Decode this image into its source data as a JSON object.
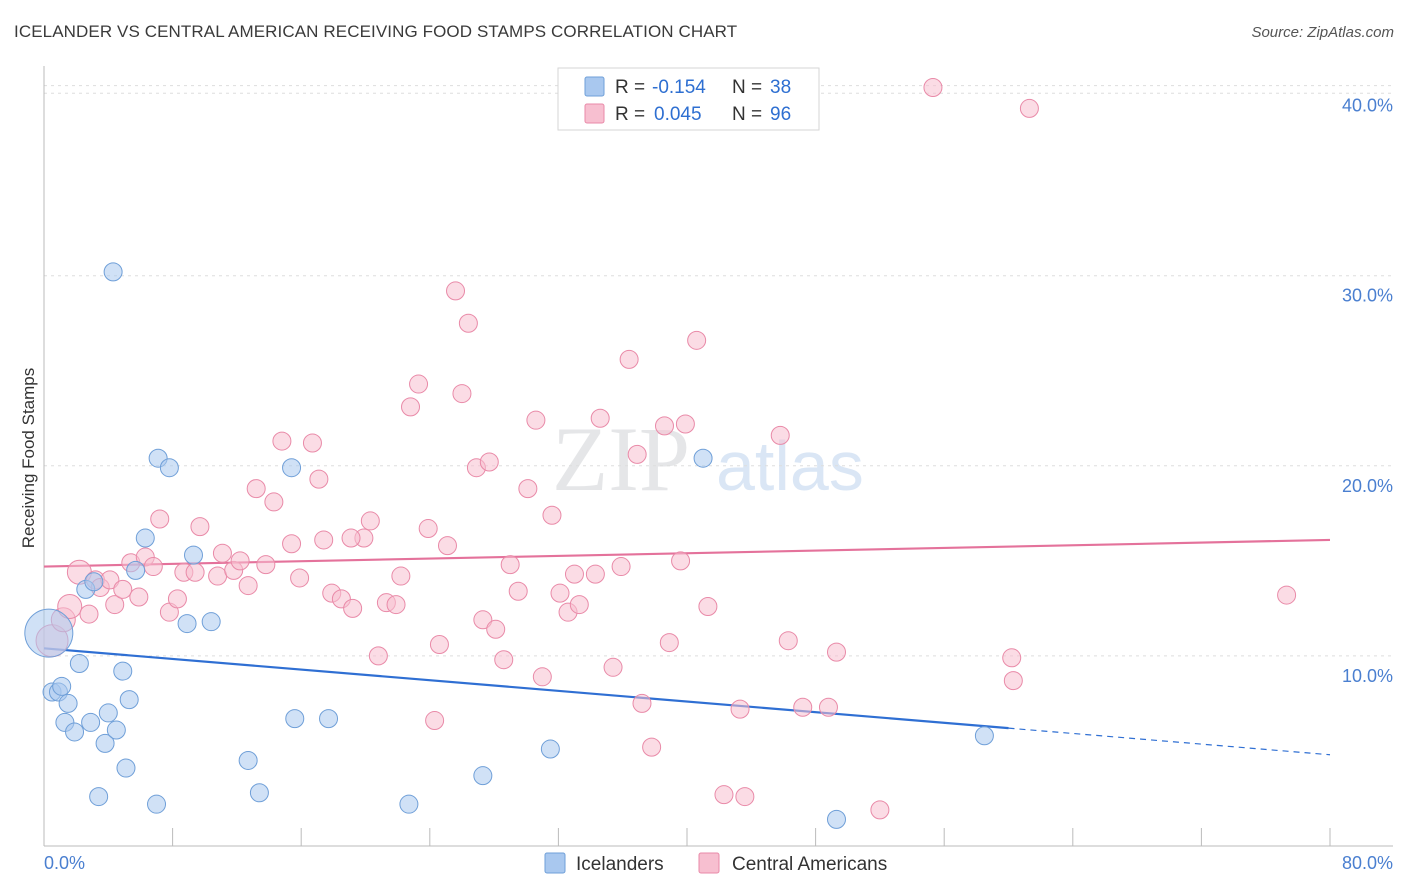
{
  "header": {
    "title": "ICELANDER VS CENTRAL AMERICAN RECEIVING FOOD STAMPS CORRELATION CHART",
    "source": "Source: ZipAtlas.com"
  },
  "watermark": {
    "zip": "ZIP",
    "atlas": "atlas"
  },
  "legend": {
    "r_label": "R =",
    "n_label": "N =",
    "rows": [
      {
        "r": "-0.154",
        "n": "38",
        "color": "#a9c8ef",
        "stroke": "#6f9fd8"
      },
      {
        "r": "0.045",
        "n": "96",
        "color": "#f7bfd0",
        "stroke": "#e98aa8"
      }
    ]
  },
  "bottom_legend": [
    {
      "label": "Icelanders",
      "color": "#a9c8ef",
      "stroke": "#6f9fd8"
    },
    {
      "label": "Central Americans",
      "color": "#f7bfd0",
      "stroke": "#e98aa8"
    }
  ],
  "chart_data": {
    "type": "scatter",
    "title": "ICELANDER VS CENTRAL AMERICAN RECEIVING FOOD STAMPS CORRELATION CHART",
    "xlabel": "",
    "ylabel": "Receiving Food Stamps",
    "xlim": [
      0,
      80
    ],
    "ylim": [
      0,
      40
    ],
    "x_tick_labels": [
      "0.0%",
      "80.0%"
    ],
    "y_ticks": [
      10,
      20,
      30,
      40
    ],
    "y_tick_labels": [
      "10.0%",
      "20.0%",
      "30.0%",
      "40.0%"
    ],
    "grid": true,
    "legend_position": "top-center",
    "series": [
      {
        "name": "Icelanders",
        "color": "#a9c8ef",
        "stroke": "#6f9fd8",
        "line_color": "#2f6fd3",
        "trend": {
          "x0": 0,
          "y0": 10.4,
          "x1": 60,
          "y1": 6.2,
          "dash_x1": 80,
          "dash_y1": 4.8
        },
        "points": [
          [
            0.3,
            11.2,
            24
          ],
          [
            0.5,
            8.1,
            9
          ],
          [
            0.9,
            8.1,
            9
          ],
          [
            1.1,
            8.4,
            9
          ],
          [
            1.5,
            7.5,
            9
          ],
          [
            1.3,
            6.5,
            9
          ],
          [
            1.9,
            6.0,
            9
          ],
          [
            2.2,
            9.6,
            9
          ],
          [
            2.6,
            13.5,
            9
          ],
          [
            3.1,
            13.9,
            9
          ],
          [
            2.9,
            6.5,
            9
          ],
          [
            3.4,
            2.6,
            9
          ],
          [
            3.8,
            5.4,
            9
          ],
          [
            4.0,
            7.0,
            9
          ],
          [
            4.5,
            6.1,
            9
          ],
          [
            4.9,
            9.2,
            9
          ],
          [
            5.1,
            4.1,
            9
          ],
          [
            5.3,
            7.7,
            9
          ],
          [
            5.7,
            14.5,
            9
          ],
          [
            4.3,
            30.2,
            9
          ],
          [
            6.3,
            16.2,
            9
          ],
          [
            7.1,
            20.4,
            9
          ],
          [
            7.8,
            19.9,
            9
          ],
          [
            7.0,
            2.2,
            9
          ],
          [
            8.9,
            11.7,
            9
          ],
          [
            9.3,
            15.3,
            9
          ],
          [
            10.4,
            11.8,
            9
          ],
          [
            12.7,
            4.5,
            9
          ],
          [
            13.4,
            2.8,
            9
          ],
          [
            15.4,
            19.9,
            9
          ],
          [
            15.6,
            6.7,
            9
          ],
          [
            17.7,
            6.7,
            9
          ],
          [
            22.7,
            2.2,
            9
          ],
          [
            27.3,
            3.7,
            9
          ],
          [
            31.5,
            5.1,
            9
          ],
          [
            41.0,
            20.4,
            9
          ],
          [
            49.3,
            1.4,
            9
          ],
          [
            58.5,
            5.8,
            9
          ]
        ]
      },
      {
        "name": "Central Americans",
        "color": "#f7bfd0",
        "stroke": "#e98aa8",
        "line_color": "#e4729b",
        "trend": {
          "x0": 0,
          "y0": 14.7,
          "x1": 80,
          "y1": 16.1
        },
        "points": [
          [
            0.5,
            10.8,
            16
          ],
          [
            1.2,
            11.9,
            12
          ],
          [
            1.6,
            12.6,
            12
          ],
          [
            2.2,
            14.4,
            12
          ],
          [
            2.8,
            12.2,
            9
          ],
          [
            3.2,
            14.0,
            9
          ],
          [
            3.5,
            13.6,
            9
          ],
          [
            4.1,
            14.0,
            9
          ],
          [
            4.4,
            12.7,
            9
          ],
          [
            4.9,
            13.5,
            9
          ],
          [
            5.4,
            14.9,
            9
          ],
          [
            5.9,
            13.1,
            9
          ],
          [
            6.3,
            15.2,
            9
          ],
          [
            6.8,
            14.7,
            9
          ],
          [
            7.2,
            17.2,
            9
          ],
          [
            7.8,
            12.3,
            9
          ],
          [
            8.3,
            13.0,
            9
          ],
          [
            8.7,
            14.4,
            9
          ],
          [
            9.4,
            14.4,
            9
          ],
          [
            9.7,
            16.8,
            9
          ],
          [
            10.8,
            14.2,
            9
          ],
          [
            11.1,
            15.4,
            9
          ],
          [
            11.8,
            14.5,
            9
          ],
          [
            12.2,
            15.0,
            9
          ],
          [
            12.7,
            13.7,
            9
          ],
          [
            13.2,
            18.8,
            9
          ],
          [
            13.8,
            14.8,
            9
          ],
          [
            14.3,
            18.1,
            9
          ],
          [
            14.8,
            21.3,
            9
          ],
          [
            15.4,
            15.9,
            9
          ],
          [
            15.9,
            14.1,
            9
          ],
          [
            16.7,
            21.2,
            9
          ],
          [
            17.1,
            19.3,
            9
          ],
          [
            17.4,
            16.1,
            9
          ],
          [
            17.9,
            13.3,
            9
          ],
          [
            18.5,
            13.0,
            9
          ],
          [
            19.2,
            12.5,
            9
          ],
          [
            19.9,
            16.2,
            9
          ],
          [
            19.1,
            16.2,
            9
          ],
          [
            20.3,
            17.1,
            9
          ],
          [
            20.8,
            10.0,
            9
          ],
          [
            21.3,
            12.8,
            9
          ],
          [
            21.9,
            12.7,
            9
          ],
          [
            22.2,
            14.2,
            9
          ],
          [
            22.8,
            23.1,
            9
          ],
          [
            23.3,
            24.3,
            9
          ],
          [
            23.9,
            16.7,
            9
          ],
          [
            24.3,
            6.6,
            9
          ],
          [
            24.6,
            10.6,
            9
          ],
          [
            25.1,
            15.8,
            9
          ],
          [
            25.6,
            29.2,
            9
          ],
          [
            26.0,
            23.8,
            9
          ],
          [
            26.4,
            27.5,
            9
          ],
          [
            26.9,
            19.9,
            9
          ],
          [
            27.3,
            11.9,
            9
          ],
          [
            27.7,
            20.2,
            9
          ],
          [
            28.1,
            11.4,
            9
          ],
          [
            28.6,
            9.8,
            9
          ],
          [
            29.0,
            14.8,
            9
          ],
          [
            29.5,
            13.4,
            9
          ],
          [
            30.1,
            18.8,
            9
          ],
          [
            30.6,
            22.4,
            9
          ],
          [
            31.0,
            8.9,
            9
          ],
          [
            31.6,
            17.4,
            9
          ],
          [
            32.1,
            13.3,
            9
          ],
          [
            32.6,
            12.3,
            9
          ],
          [
            33.0,
            14.3,
            9
          ],
          [
            33.3,
            12.7,
            9
          ],
          [
            34.3,
            14.3,
            9
          ],
          [
            34.6,
            22.5,
            9
          ],
          [
            35.4,
            9.4,
            9
          ],
          [
            35.9,
            14.7,
            9
          ],
          [
            36.4,
            25.6,
            9
          ],
          [
            36.9,
            20.6,
            9
          ],
          [
            37.2,
            7.5,
            9
          ],
          [
            37.8,
            5.2,
            9
          ],
          [
            38.6,
            22.1,
            9
          ],
          [
            38.9,
            10.7,
            9
          ],
          [
            39.6,
            15.0,
            9
          ],
          [
            39.9,
            22.2,
            9
          ],
          [
            40.6,
            26.6,
            9
          ],
          [
            41.3,
            12.6,
            9
          ],
          [
            42.3,
            2.7,
            9
          ],
          [
            43.3,
            7.2,
            9
          ],
          [
            43.6,
            2.6,
            9
          ],
          [
            45.8,
            21.6,
            9
          ],
          [
            46.3,
            10.8,
            9
          ],
          [
            47.2,
            7.3,
            9
          ],
          [
            48.8,
            7.3,
            9
          ],
          [
            49.3,
            10.2,
            9
          ],
          [
            52.0,
            1.9,
            9
          ],
          [
            55.3,
            39.9,
            9
          ],
          [
            60.2,
            9.9,
            9
          ],
          [
            60.3,
            8.7,
            9
          ],
          [
            61.3,
            38.8,
            9
          ],
          [
            77.3,
            13.2,
            9
          ]
        ]
      }
    ]
  }
}
